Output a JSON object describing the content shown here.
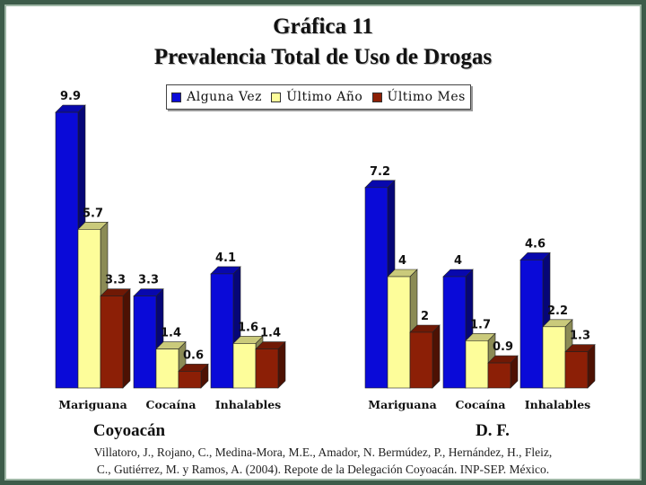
{
  "title_line1": "Gráfica 11",
  "title_line2": "Prevalencia Total de Uso de Drogas",
  "citation_line1": "Villatoro, J., Rojano, C., Medina-Mora, M.E., Amador, N. Bermúdez, P., Hernández, H., Fleiz,",
  "citation_line2": "C., Gutiérrez, M. y Ramos, A. (2004). Repote de la Delegación Coyoacán. INP-SEP. México.",
  "legend": [
    {
      "name": "Alguna Vez",
      "color": "#0a0ad8"
    },
    {
      "name": "Último Año",
      "color": "#fdfd9a"
    },
    {
      "name": "Último Mes",
      "color": "#8c1f06"
    }
  ],
  "chart_data": [
    {
      "type": "bar",
      "title": "Coyoacán",
      "categories": [
        "Mariguana",
        "Cocaína",
        "Inhalables"
      ],
      "series": [
        {
          "name": "Alguna Vez",
          "values": [
            9.9,
            3.3,
            4.1
          ],
          "labels": [
            "9.9",
            "3.3",
            "4.1"
          ]
        },
        {
          "name": "Último Año",
          "values": [
            5.7,
            1.4,
            1.6
          ],
          "labels": [
            "5.7",
            "1.4",
            "1.6"
          ]
        },
        {
          "name": "Último Mes",
          "values": [
            3.3,
            0.6,
            1.4
          ],
          "labels": [
            "3.3",
            "0.6",
            "1.4"
          ]
        }
      ],
      "ylim": [
        0,
        10
      ],
      "grid": false,
      "legend_position": "top"
    },
    {
      "type": "bar",
      "title": "D. F.",
      "categories": [
        "Mariguana",
        "Cocaína",
        "Inhalables"
      ],
      "series": [
        {
          "name": "Alguna Vez",
          "values": [
            7.2,
            4,
            4.6
          ],
          "labels": [
            "7.2",
            "4",
            "4.6"
          ]
        },
        {
          "name": "Último Año",
          "values": [
            4,
            1.7,
            2.2
          ],
          "labels": [
            "4",
            "1.7",
            "2.2"
          ]
        },
        {
          "name": "Último Mes",
          "values": [
            2,
            0.9,
            1.3
          ],
          "labels": [
            "2",
            "0.9",
            "1.3"
          ]
        }
      ],
      "ylim": [
        0,
        10
      ],
      "grid": false,
      "legend_position": "top"
    }
  ]
}
